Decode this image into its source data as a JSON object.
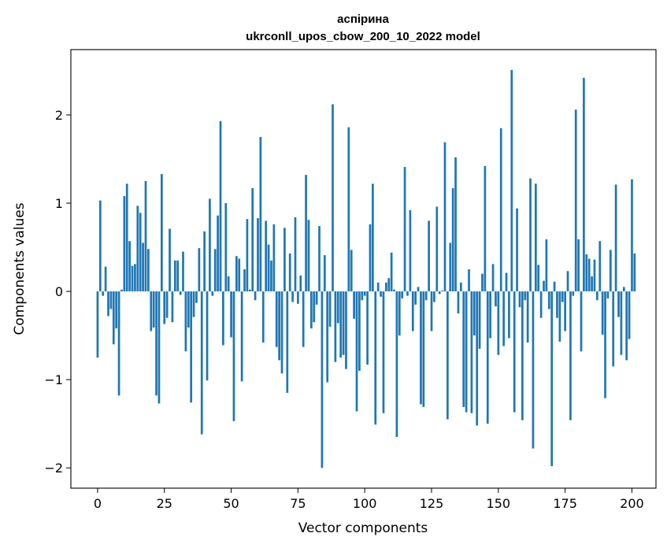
{
  "chart_data": {
    "type": "bar",
    "title": "аспірина",
    "subtitle": "ukrconll_upos_cbow_200_10_2022 model",
    "xlabel": "Vector components",
    "ylabel": "Components values",
    "xlim": [
      -10,
      209
    ],
    "ylim": [
      -2.23,
      2.74
    ],
    "xticks": [
      0,
      25,
      50,
      75,
      100,
      125,
      150,
      175,
      200
    ],
    "xtick_labels": [
      "0",
      "25",
      "50",
      "75",
      "100",
      "125",
      "150",
      "175",
      "200"
    ],
    "yticks": [
      -2,
      -1,
      0,
      1,
      2
    ],
    "ytick_labels": [
      "−2",
      "−1",
      "0",
      "1",
      "2"
    ],
    "bar_color": "#1f77b4",
    "grid": false,
    "legend": "none",
    "values": [
      -0.75,
      1.03,
      -0.05,
      0.28,
      -0.28,
      -0.2,
      -0.6,
      -0.42,
      -1.18,
      0.02,
      1.08,
      1.22,
      0.57,
      0.29,
      0.31,
      0.97,
      0.89,
      0.55,
      1.25,
      0.48,
      -0.45,
      -0.41,
      -1.18,
      -1.27,
      1.33,
      -0.37,
      -0.3,
      0.71,
      -0.35,
      0.35,
      0.35,
      -0.04,
      0.45,
      -0.68,
      -0.41,
      -1.26,
      -0.29,
      -0.13,
      0.49,
      -1.62,
      0.68,
      -1.01,
      1.05,
      -0.05,
      0.48,
      0.86,
      1.93,
      -0.61,
      1.0,
      0.17,
      -0.52,
      -1.47,
      0.4,
      0.37,
      -1.02,
      0.25,
      0.82,
      0.02,
      1.17,
      -0.1,
      0.83,
      1.75,
      -0.58,
      0.8,
      0.53,
      0.35,
      0.76,
      -0.63,
      -0.78,
      -0.93,
      0.72,
      -1.15,
      0.43,
      -0.12,
      0.84,
      -0.14,
      0.18,
      -0.63,
      1.32,
      0.81,
      -0.42,
      -0.35,
      -0.15,
      0.74,
      -2.0,
      0.41,
      -1.03,
      -0.4,
      2.12,
      -0.8,
      -0.36,
      -0.75,
      -0.72,
      -0.88,
      1.86,
      0.47,
      -0.31,
      -1.36,
      -0.9,
      -0.1,
      -0.05,
      -0.83,
      0.76,
      1.22,
      -1.51,
      0.1,
      -0.06,
      -1.38,
      0.1,
      0.15,
      0.44,
      0.02,
      -1.65,
      -0.5,
      -0.08,
      1.41,
      -0.05,
      0.92,
      -0.45,
      -0.15,
      0.05,
      -1.28,
      -1.31,
      -0.1,
      0.8,
      -0.45,
      -0.12,
      0.96,
      -0.03,
      0.01,
      1.69,
      -1.45,
      0.55,
      1.17,
      1.52,
      -0.25,
      0.1,
      -1.31,
      -1.37,
      0.25,
      -1.38,
      -0.5,
      -1.52,
      -0.65,
      0.2,
      1.42,
      -1.5,
      -0.53,
      0.31,
      -0.17,
      -0.72,
      1.85,
      -0.62,
      0.21,
      -0.53,
      2.51,
      -1.37,
      0.94,
      -0.18,
      -1.46,
      -0.1,
      -0.58,
      1.28,
      -1.78,
      1.22,
      0.3,
      -0.3,
      0.12,
      0.59,
      -0.2,
      -1.98,
      0.11,
      -0.3,
      -0.57,
      -0.12,
      -0.45,
      0.23,
      -1.46,
      -0.05,
      2.06,
      0.59,
      -0.68,
      2.42,
      0.42,
      0.37,
      0.17,
      0.36,
      -0.1,
      0.57,
      -0.49,
      -1.21,
      -0.08,
      0.47,
      -0.85,
      1.21,
      -0.29,
      -0.72,
      0.05,
      -0.78,
      -0.54,
      1.27,
      0.43
    ]
  }
}
